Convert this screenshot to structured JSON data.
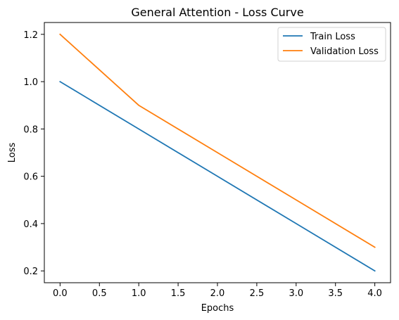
{
  "chart_data": {
    "type": "line",
    "title": "General Attention - Loss Curve",
    "xlabel": "Epochs",
    "ylabel": "Loss",
    "x": [
      0,
      1,
      2,
      3,
      4
    ],
    "series": [
      {
        "name": "Train Loss",
        "values": [
          1.0,
          0.8,
          0.6,
          0.4,
          0.2
        ],
        "color": "#1f77b4"
      },
      {
        "name": "Validation Loss",
        "values": [
          1.2,
          0.9,
          0.7,
          0.5,
          0.3
        ],
        "color": "#ff7f0e"
      }
    ],
    "xlim": [
      -0.2,
      4.2
    ],
    "ylim": [
      0.15,
      1.25
    ],
    "xticks": [
      0.0,
      0.5,
      1.0,
      1.5,
      2.0,
      2.5,
      3.0,
      3.5,
      4.0
    ],
    "xtick_labels": [
      "0.0",
      "0.5",
      "1.0",
      "1.5",
      "2.0",
      "2.5",
      "3.0",
      "3.5",
      "4.0"
    ],
    "yticks": [
      0.2,
      0.4,
      0.6,
      0.8,
      1.0,
      1.2
    ],
    "ytick_labels": [
      "0.2",
      "0.4",
      "0.6",
      "0.8",
      "1.0",
      "1.2"
    ],
    "grid": false,
    "legend": "upper-right"
  }
}
